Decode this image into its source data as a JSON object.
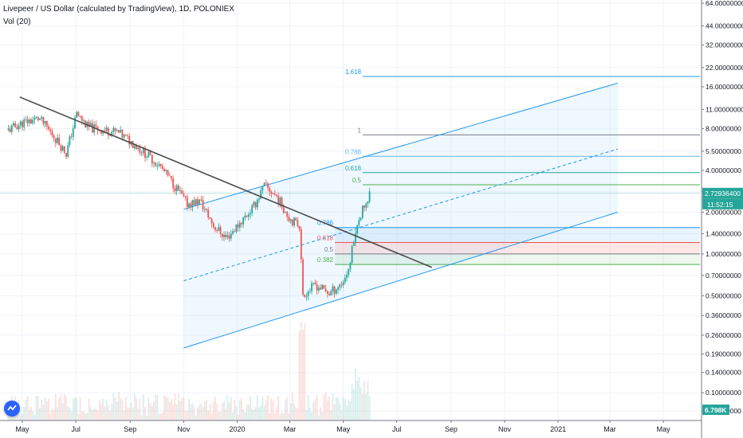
{
  "header": {
    "symbol_line": "Livepeer / US Dollar (calculated by TradingView), 1D, POLONIEX",
    "volume_line": "Vol (20)"
  },
  "chart_data": {
    "type": "candlestick",
    "y_scale": "log",
    "ylim": [
      0.0745,
      66.0
    ],
    "y_ticks": [
      "64.00000000",
      "44.00000000",
      "32.00000000",
      "22.00000000",
      "16.00000000",
      "11.00000000",
      "8.00000000",
      "5.50000000",
      "4.00000000",
      "2.80000000",
      "2.00000000",
      "1.40000000",
      "1.00000000",
      "0.70000000",
      "0.50000000",
      "0.36000000",
      "0.26000000",
      "0.19000000",
      "0.14000000",
      "0.10000000",
      "0.07400000"
    ],
    "x_ticks": [
      "May",
      "Jul",
      "Sep",
      "Nov",
      "2020",
      "Mar",
      "May",
      "Jul",
      "Sep",
      "Nov",
      "2021",
      "Mar",
      "May"
    ],
    "last_price": "2.72936400",
    "countdown": "11:52:15",
    "volume_label": "6.798K",
    "fib_upper": [
      {
        "label": "1.618",
        "value": 19.0
      },
      {
        "label": "1",
        "value": 7.2
      },
      {
        "label": "0.786",
        "value": 5.05
      },
      {
        "label": "0.618",
        "value": 3.85
      },
      {
        "label": "0.5",
        "value": 3.15
      }
    ],
    "fib_lower": [
      {
        "label": "0.786",
        "value": 1.55
      },
      {
        "label": "0.618",
        "value": 1.21
      },
      {
        "label": "0.5",
        "value": 1.0
      },
      {
        "label": "0.382",
        "value": 0.84
      }
    ],
    "trend_line": {
      "start": [
        "2019-04-28",
        13.5
      ],
      "end": [
        "2020-08-10",
        0.8
      ]
    },
    "channel": {
      "upper": {
        "start": [
          "2019-11-01",
          2.1
        ],
        "end": [
          "2021-03-10",
          17.0
        ]
      },
      "middle": {
        "start": [
          "2019-11-01",
          0.64
        ],
        "end": [
          "2021-03-10",
          5.7
        ]
      },
      "lower": {
        "start": [
          "2019-11-01",
          0.21
        ],
        "end": [
          "2021-03-10",
          2.0
        ]
      }
    },
    "price_path": [
      [
        "2019-04-15",
        7.8
      ],
      [
        "2019-05-01",
        8.8
      ],
      [
        "2019-05-20",
        9.5
      ],
      [
        "2019-06-08",
        6.8
      ],
      [
        "2019-06-20",
        5.3
      ],
      [
        "2019-07-02",
        10.2
      ],
      [
        "2019-07-15",
        8.2
      ],
      [
        "2019-08-01",
        7.8
      ],
      [
        "2019-08-18",
        7.5
      ],
      [
        "2019-09-05",
        6.2
      ],
      [
        "2019-09-20",
        5.2
      ],
      [
        "2019-10-05",
        4.3
      ],
      [
        "2019-10-20",
        3.2
      ],
      [
        "2019-11-05",
        2.3
      ],
      [
        "2019-11-20",
        2.4
      ],
      [
        "2019-12-05",
        1.6
      ],
      [
        "2019-12-20",
        1.3
      ],
      [
        "2020-01-05",
        1.7
      ],
      [
        "2020-01-20",
        2.2
      ],
      [
        "2020-02-01",
        3.1
      ],
      [
        "2020-02-15",
        2.6
      ],
      [
        "2020-03-01",
        1.8
      ],
      [
        "2020-03-12",
        1.6
      ],
      [
        "2020-03-16",
        0.5
      ],
      [
        "2020-03-30",
        0.6
      ],
      [
        "2020-04-15",
        0.52
      ],
      [
        "2020-04-30",
        0.62
      ],
      [
        "2020-05-08",
        0.8
      ],
      [
        "2020-05-13",
        1.3
      ],
      [
        "2020-05-18",
        1.8
      ],
      [
        "2020-05-25",
        2.2
      ],
      [
        "2020-05-31",
        2.73
      ]
    ]
  }
}
